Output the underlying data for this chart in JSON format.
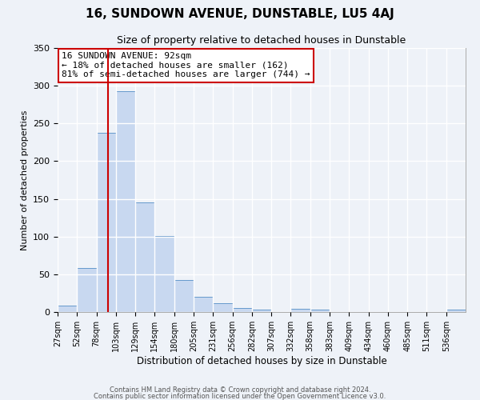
{
  "title": "16, SUNDOWN AVENUE, DUNSTABLE, LU5 4AJ",
  "subtitle": "Size of property relative to detached houses in Dunstable",
  "xlabel": "Distribution of detached houses by size in Dunstable",
  "ylabel": "Number of detached properties",
  "bin_labels": [
    "27sqm",
    "52sqm",
    "78sqm",
    "103sqm",
    "129sqm",
    "154sqm",
    "180sqm",
    "205sqm",
    "231sqm",
    "256sqm",
    "282sqm",
    "307sqm",
    "332sqm",
    "358sqm",
    "383sqm",
    "409sqm",
    "434sqm",
    "460sqm",
    "485sqm",
    "511sqm",
    "536sqm"
  ],
  "bar_values": [
    8,
    58,
    238,
    293,
    145,
    101,
    42,
    20,
    12,
    5,
    3,
    0,
    4,
    3,
    0,
    0,
    0,
    0,
    0,
    0,
    3
  ],
  "bar_color": "#c8d8f0",
  "bar_edge_color": "#6699cc",
  "vline_x": 92,
  "vline_color": "#cc0000",
  "ylim": [
    0,
    350
  ],
  "yticks": [
    0,
    50,
    100,
    150,
    200,
    250,
    300,
    350
  ],
  "annotation_text": "16 SUNDOWN AVENUE: 92sqm\n← 18% of detached houses are smaller (162)\n81% of semi-detached houses are larger (744) →",
  "annotation_box_edge_color": "#cc0000",
  "footer_line1": "Contains HM Land Registry data © Crown copyright and database right 2024.",
  "footer_line2": "Contains public sector information licensed under the Open Government Licence v3.0.",
  "bg_color": "#eef2f8",
  "plot_bg_color": "#eef2f8",
  "grid_color": "#ffffff",
  "bin_width": 25
}
